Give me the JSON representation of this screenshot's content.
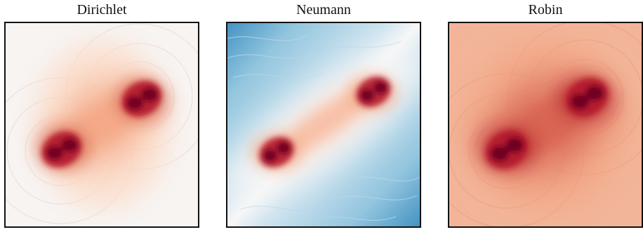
{
  "panels": [
    {
      "title": "Dirichlet",
      "background": "#f7f4f2",
      "ring_color": "#e6d8d3"
    },
    {
      "title": "Neumann",
      "background": "#dbe9f4",
      "ring_color": "#b9d5ea"
    },
    {
      "title": "Robin",
      "background": "#f2b59a",
      "ring_color": "#e9a083"
    }
  ],
  "colors": {
    "deep_red": "#67001f",
    "red": "#b2182b",
    "mid_red": "#d6604d",
    "light_red": "#f4a582",
    "pale_red": "#fddbc7",
    "neutral": "#f7f7f7",
    "pale_blue": "#d1e5f0",
    "light_blue": "#92c5de",
    "blue": "#4393c3",
    "frame": "#111111"
  }
}
